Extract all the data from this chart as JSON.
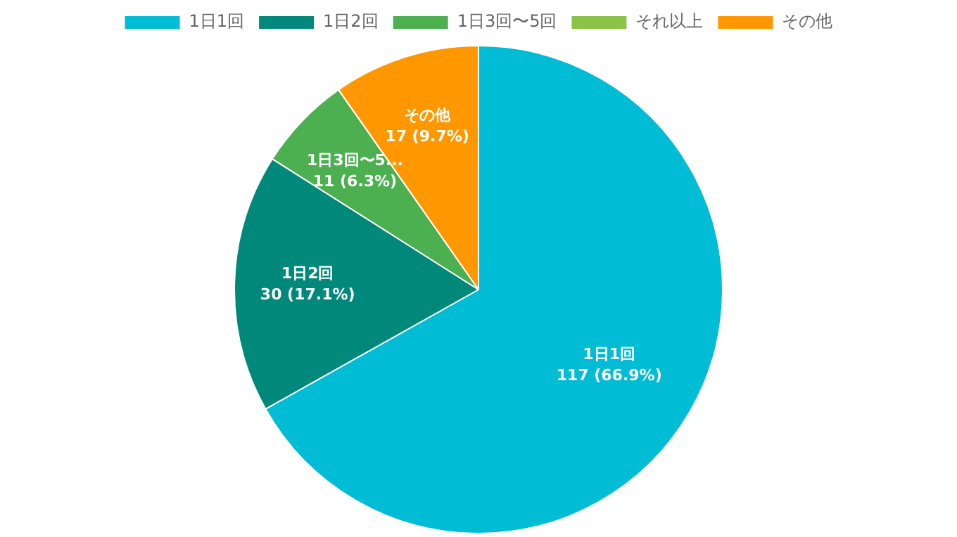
{
  "chart_data": {
    "type": "pie",
    "categories": [
      "1日1回",
      "1日2回",
      "1日3回〜5回",
      "それ以上",
      "その他"
    ],
    "values": [
      117,
      30,
      11,
      0,
      17
    ],
    "colors": [
      "#00bcd4",
      "#00897b",
      "#4caf50",
      "#8bc34a",
      "#ff9800"
    ],
    "value_labels": [
      "1日1回\n117 (66.9%)",
      "1日2回\n30 (17.1%)",
      "1日3回〜5...\n11 (6.3%)",
      null,
      "その他\n17 (9.7%)"
    ],
    "legend": "top"
  }
}
